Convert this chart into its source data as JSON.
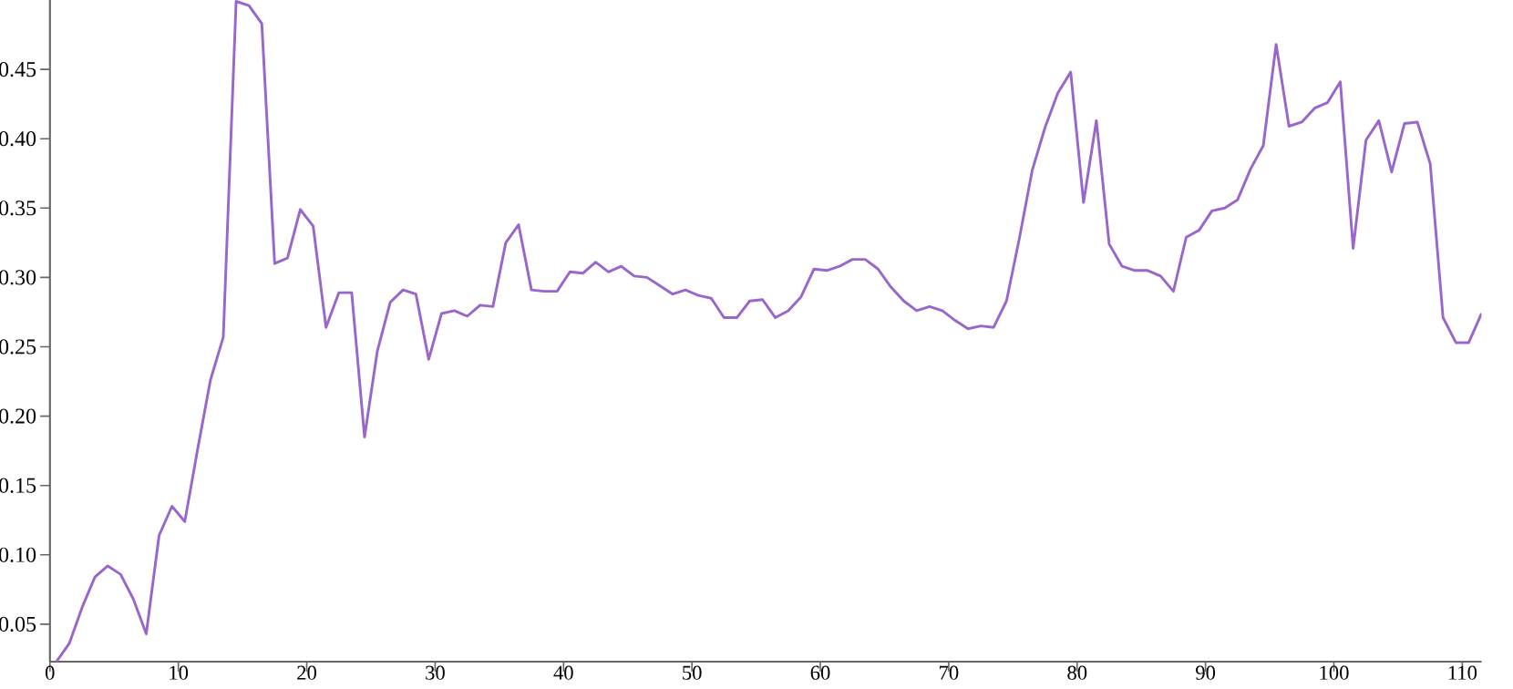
{
  "chart_data": {
    "type": "line",
    "x": [
      0.5,
      1.5,
      2.5,
      3.5,
      4.5,
      5.5,
      6.5,
      7.5,
      8.5,
      9.5,
      10.5,
      11.5,
      12.5,
      13.5,
      14.5,
      15.5,
      16.5,
      17.5,
      18.5,
      19.5,
      20.5,
      21.5,
      22.5,
      23.5,
      24.5,
      25.5,
      26.5,
      27.5,
      28.5,
      29.5,
      30.5,
      31.5,
      32.5,
      33.5,
      34.5,
      35.5,
      36.5,
      37.5,
      38.5,
      39.5,
      40.5,
      41.5,
      42.5,
      43.5,
      44.5,
      45.5,
      46.5,
      47.5,
      48.5,
      49.5,
      50.5,
      51.5,
      52.5,
      53.5,
      54.5,
      55.5,
      56.5,
      57.5,
      58.5,
      59.5,
      60.5,
      61.5,
      62.5,
      63.5,
      64.5,
      65.5,
      66.5,
      67.5,
      68.5,
      69.5,
      70.5,
      71.5,
      72.5,
      73.5,
      74.5,
      75.5,
      76.5,
      77.5,
      78.5,
      79.5,
      80.5,
      81.5,
      82.5,
      83.5,
      84.5,
      85.5,
      86.5,
      87.5,
      88.5,
      89.5,
      90.5,
      91.5,
      92.5,
      93.5,
      94.5,
      95.5,
      96.5,
      97.5,
      98.5,
      99.5,
      100.5,
      101.5,
      102.5,
      103.5,
      104.5,
      105.5,
      106.5,
      107.5,
      108.5,
      109.5,
      110.5,
      111.5
    ],
    "series": [
      {
        "color": "#9966cc",
        "values": [
          0.023,
          0.036,
          0.062,
          0.084,
          0.092,
          0.086,
          0.068,
          0.043,
          0.114,
          0.135,
          0.124,
          0.176,
          0.226,
          0.257,
          0.499,
          0.496,
          0.483,
          0.31,
          0.314,
          0.349,
          0.337,
          0.264,
          0.289,
          0.289,
          0.185,
          0.247,
          0.282,
          0.291,
          0.288,
          0.241,
          0.274,
          0.276,
          0.272,
          0.28,
          0.279,
          0.325,
          0.338,
          0.291,
          0.29,
          0.29,
          0.304,
          0.303,
          0.311,
          0.304,
          0.308,
          0.301,
          0.3,
          0.294,
          0.288,
          0.291,
          0.287,
          0.285,
          0.271,
          0.271,
          0.283,
          0.284,
          0.271,
          0.276,
          0.286,
          0.306,
          0.305,
          0.308,
          0.313,
          0.313,
          0.306,
          0.293,
          0.283,
          0.276,
          0.279,
          0.276,
          0.269,
          0.263,
          0.265,
          0.264,
          0.283,
          0.328,
          0.377,
          0.408,
          0.433,
          0.448,
          0.354,
          0.413,
          0.324,
          0.308,
          0.305,
          0.305,
          0.301,
          0.29,
          0.329,
          0.334,
          0.348,
          0.35,
          0.356,
          0.378,
          0.395,
          0.468,
          0.409,
          0.412,
          0.422,
          0.426,
          0.441,
          0.321,
          0.399,
          0.413,
          0.376,
          0.411,
          0.412,
          0.382,
          0.271,
          0.253,
          0.253,
          0.274
        ]
      }
    ],
    "xlim": [
      0,
      111.5
    ],
    "ylim": [
      0.023,
      0.5
    ],
    "xticks": [
      0,
      10,
      20,
      30,
      40,
      50,
      60,
      70,
      80,
      90,
      100,
      110
    ],
    "yticks": [
      0.05,
      {
        "value": 0.1,
        "label": "0.10"
      },
      0.15,
      {
        "value": 0.2,
        "label": "0.20"
      },
      0.25,
      {
        "value": 0.3,
        "label": "0.30"
      },
      0.35,
      {
        "value": 0.4,
        "label": "0.40"
      },
      0.45
    ]
  }
}
